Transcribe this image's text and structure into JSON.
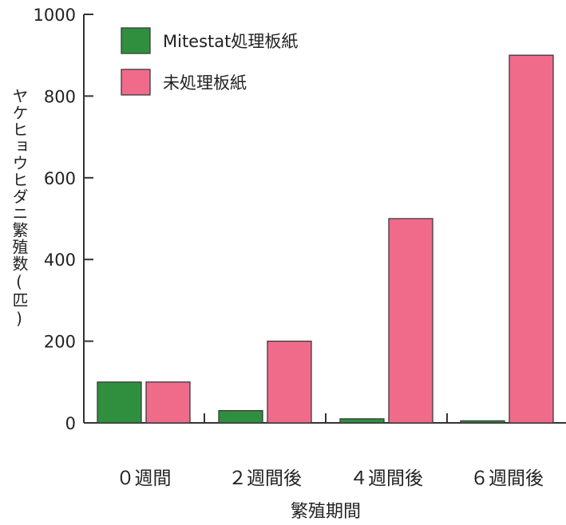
{
  "chart_data": {
    "type": "bar",
    "categories": [
      "０週間",
      "２週間後",
      "４週間後",
      "６週間後"
    ],
    "series": [
      {
        "name": "Mitestat処理板紙",
        "values": [
          100,
          30,
          10,
          5
        ],
        "color": "#2f8f3f"
      },
      {
        "name": "未処理板紙",
        "values": [
          100,
          200,
          500,
          900
        ],
        "color": "#f06b8a"
      }
    ],
    "title": "",
    "xlabel": "繁殖期間",
    "ylabel": "ヤケヒョウヒダニ繁殖数(匹)",
    "ylim": [
      0,
      1000
    ],
    "yticks": [
      0,
      200,
      400,
      600,
      800,
      1000
    ],
    "grid": false,
    "legend": "top-left"
  }
}
